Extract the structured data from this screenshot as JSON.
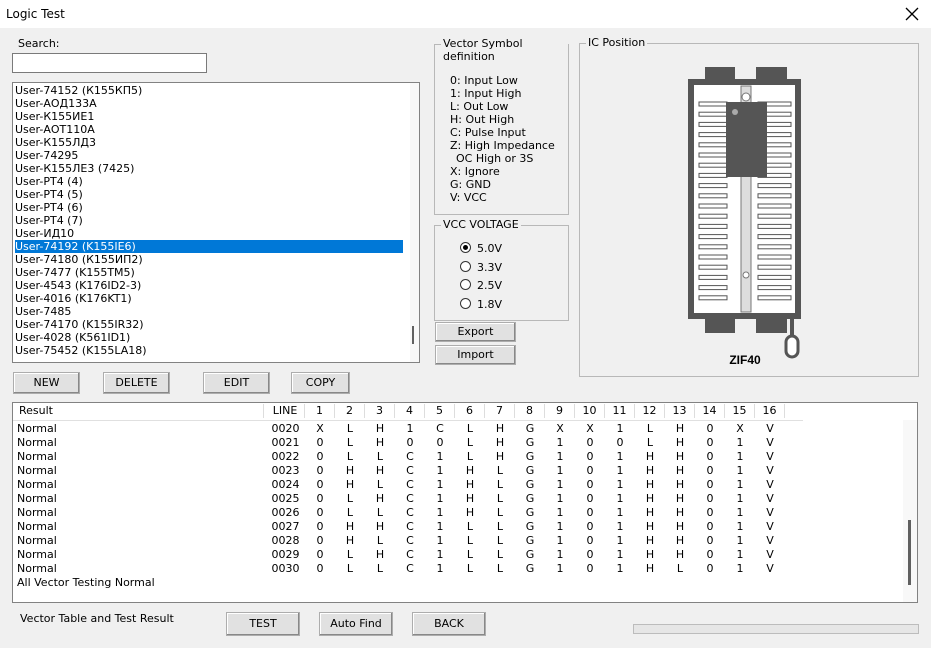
{
  "window": {
    "title": "Logic Test"
  },
  "search": {
    "label": "Search:"
  },
  "device_list": {
    "items": [
      "User-74152 (К155КП5)",
      "User-АОД133А",
      "User-К155ИЕ1",
      "User-АОТ110А",
      "User-К155ЛД3",
      "User-74295",
      "User-К155ЛЕ3 (7425)",
      "User-PT4 (4)",
      "User-PT4 (5)",
      "User-PT4 (6)",
      "User-PT4 (7)",
      "User-ИД10",
      "User-74192 (K155IE6)",
      "User-74180 (К155ИП2)",
      "User-7477 (K155TM5)",
      "User-4543 (K176ID2-3)",
      "User-4016 (K176KT1)",
      "User-7485",
      "User-74170 (K155IR32)",
      "User-4028 (K561ID1)",
      "User-75452 (K155LA18)"
    ],
    "selected": 12
  },
  "list_buttons": [
    "NEW",
    "DELETE",
    "EDIT",
    "COPY"
  ],
  "vector_symbols": {
    "title": "Vector Symbol definition",
    "lines": [
      "0: Input Low",
      "1: Input High",
      "L: Out Low",
      "H: Out High",
      "C: Pulse Input",
      "Z: High Impedance",
      "OC High or 3S",
      "X: Ignore",
      "G: GND",
      "V: VCC"
    ]
  },
  "vcc_voltage": {
    "title": "VCC VOLTAGE",
    "options": [
      "5.0V",
      "3.3V",
      "2.5V",
      "1.8V"
    ],
    "selected": 0
  },
  "file_buttons": [
    "Export",
    "Import"
  ],
  "ic_position": {
    "title": "IC Position",
    "socket_label": "ZIF40"
  },
  "table": {
    "columns": [
      "Result",
      "LINE",
      "1",
      "2",
      "3",
      "4",
      "5",
      "6",
      "7",
      "8",
      "9",
      "10",
      "11",
      "12",
      "13",
      "14",
      "15",
      "16"
    ],
    "rows": [
      [
        "Normal",
        "0020",
        "X",
        "L",
        "H",
        "1",
        "C",
        "L",
        "H",
        "G",
        "X",
        "X",
        "1",
        "L",
        "H",
        "0",
        "X",
        "V"
      ],
      [
        "Normal",
        "0021",
        "0",
        "L",
        "H",
        "0",
        "0",
        "L",
        "H",
        "G",
        "1",
        "0",
        "0",
        "L",
        "H",
        "0",
        "1",
        "V"
      ],
      [
        "Normal",
        "0022",
        "0",
        "L",
        "L",
        "C",
        "1",
        "L",
        "H",
        "G",
        "1",
        "0",
        "1",
        "H",
        "H",
        "0",
        "1",
        "V"
      ],
      [
        "Normal",
        "0023",
        "0",
        "H",
        "H",
        "C",
        "1",
        "H",
        "L",
        "G",
        "1",
        "0",
        "1",
        "H",
        "H",
        "0",
        "1",
        "V"
      ],
      [
        "Normal",
        "0024",
        "0",
        "H",
        "L",
        "C",
        "1",
        "H",
        "L",
        "G",
        "1",
        "0",
        "1",
        "H",
        "H",
        "0",
        "1",
        "V"
      ],
      [
        "Normal",
        "0025",
        "0",
        "L",
        "H",
        "C",
        "1",
        "H",
        "L",
        "G",
        "1",
        "0",
        "1",
        "H",
        "H",
        "0",
        "1",
        "V"
      ],
      [
        "Normal",
        "0026",
        "0",
        "L",
        "L",
        "C",
        "1",
        "H",
        "L",
        "G",
        "1",
        "0",
        "1",
        "H",
        "H",
        "0",
        "1",
        "V"
      ],
      [
        "Normal",
        "0027",
        "0",
        "H",
        "H",
        "C",
        "1",
        "L",
        "L",
        "G",
        "1",
        "0",
        "1",
        "H",
        "H",
        "0",
        "1",
        "V"
      ],
      [
        "Normal",
        "0028",
        "0",
        "H",
        "L",
        "C",
        "1",
        "L",
        "L",
        "G",
        "1",
        "0",
        "1",
        "H",
        "H",
        "0",
        "1",
        "V"
      ],
      [
        "Normal",
        "0029",
        "0",
        "L",
        "H",
        "C",
        "1",
        "L",
        "L",
        "G",
        "1",
        "0",
        "1",
        "H",
        "H",
        "0",
        "1",
        "V"
      ],
      [
        "Normal",
        "0030",
        "0",
        "L",
        "L",
        "C",
        "1",
        "L",
        "L",
        "G",
        "1",
        "0",
        "1",
        "H",
        "L",
        "0",
        "1",
        "V"
      ]
    ],
    "summary": "All Vector Testing Normal"
  },
  "footer": {
    "label": "Vector Table and Test Result",
    "buttons": [
      "TEST",
      "Auto Find",
      "BACK"
    ]
  }
}
